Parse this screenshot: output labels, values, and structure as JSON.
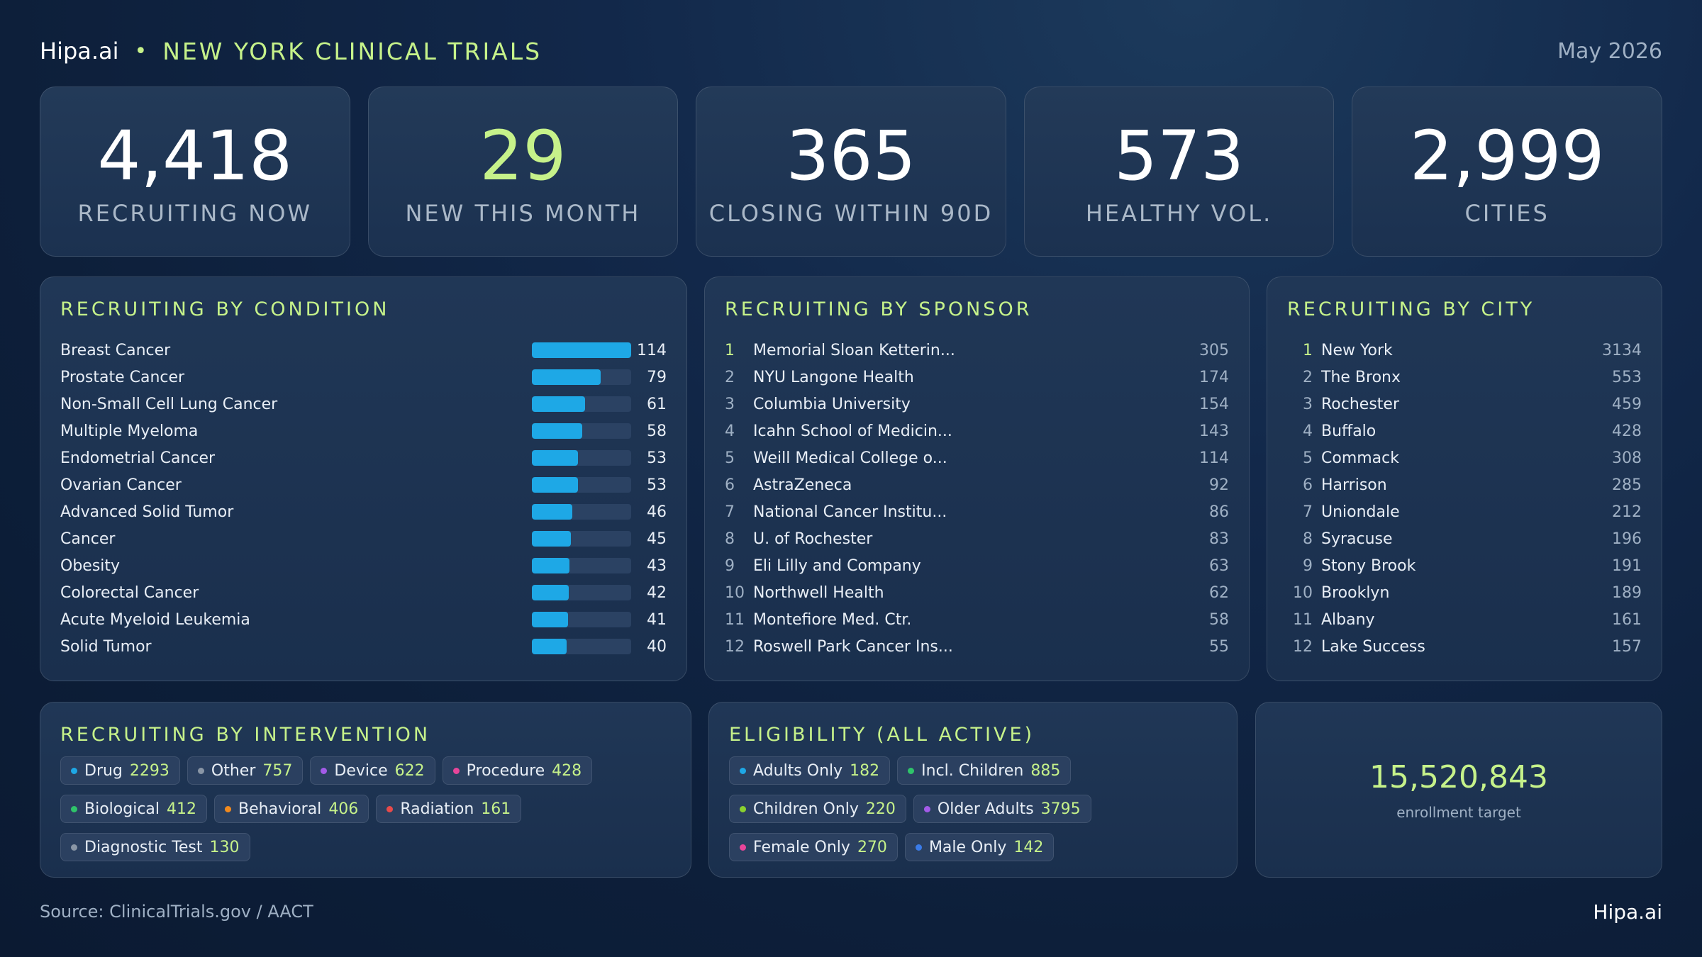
{
  "header": {
    "brand": "Hipa.ai",
    "separator": "•",
    "title": "NEW YORK CLINICAL TRIALS",
    "date": "May 2026"
  },
  "kpis": [
    {
      "value": "4,418",
      "label": "RECRUITING NOW"
    },
    {
      "value": "29",
      "label": "NEW THIS MONTH"
    },
    {
      "value": "365",
      "label": "CLOSING WITHIN 90D"
    },
    {
      "value": "573",
      "label": "HEALTHY VOL."
    },
    {
      "value": "2,999",
      "label": "CITIES"
    }
  ],
  "condition": {
    "title": "RECRUITING BY CONDITION",
    "max": 114,
    "items": [
      {
        "name": "Breast Cancer",
        "value": 114
      },
      {
        "name": "Prostate Cancer",
        "value": 79
      },
      {
        "name": "Non-Small Cell Lung Cancer",
        "value": 61
      },
      {
        "name": "Multiple Myeloma",
        "value": 58
      },
      {
        "name": "Endometrial Cancer",
        "value": 53
      },
      {
        "name": "Ovarian Cancer",
        "value": 53
      },
      {
        "name": "Advanced Solid Tumor",
        "value": 46
      },
      {
        "name": "Cancer",
        "value": 45
      },
      {
        "name": "Obesity",
        "value": 43
      },
      {
        "name": "Colorectal Cancer",
        "value": 42
      },
      {
        "name": "Acute Myeloid Leukemia",
        "value": 41
      },
      {
        "name": "Solid Tumor",
        "value": 40
      }
    ]
  },
  "sponsor": {
    "title": "RECRUITING BY SPONSOR",
    "items": [
      {
        "rank": "1",
        "name": "Memorial Sloan Ketterin...",
        "value": "305"
      },
      {
        "rank": "2",
        "name": "NYU Langone Health",
        "value": "174"
      },
      {
        "rank": "3",
        "name": "Columbia University",
        "value": "154"
      },
      {
        "rank": "4",
        "name": "Icahn School of Medicin...",
        "value": "143"
      },
      {
        "rank": "5",
        "name": "Weill Medical College o...",
        "value": "114"
      },
      {
        "rank": "6",
        "name": "AstraZeneca",
        "value": "92"
      },
      {
        "rank": "7",
        "name": "National Cancer Institu...",
        "value": "86"
      },
      {
        "rank": "8",
        "name": "U. of Rochester",
        "value": "83"
      },
      {
        "rank": "9",
        "name": "Eli Lilly and Company",
        "value": "63"
      },
      {
        "rank": "10",
        "name": "Northwell Health",
        "value": "62"
      },
      {
        "rank": "11",
        "name": "Montefiore Med. Ctr.",
        "value": "58"
      },
      {
        "rank": "12",
        "name": "Roswell Park Cancer Ins...",
        "value": "55"
      }
    ]
  },
  "city": {
    "title": "RECRUITING BY CITY",
    "items": [
      {
        "rank": "1",
        "name": "New York",
        "value": "3134"
      },
      {
        "rank": "2",
        "name": "The Bronx",
        "value": "553"
      },
      {
        "rank": "3",
        "name": "Rochester",
        "value": "459"
      },
      {
        "rank": "4",
        "name": "Buffalo",
        "value": "428"
      },
      {
        "rank": "5",
        "name": "Commack",
        "value": "308"
      },
      {
        "rank": "6",
        "name": "Harrison",
        "value": "285"
      },
      {
        "rank": "7",
        "name": "Uniondale",
        "value": "212"
      },
      {
        "rank": "8",
        "name": "Syracuse",
        "value": "196"
      },
      {
        "rank": "9",
        "name": "Stony Brook",
        "value": "191"
      },
      {
        "rank": "10",
        "name": "Brooklyn",
        "value": "189"
      },
      {
        "rank": "11",
        "name": "Albany",
        "value": "161"
      },
      {
        "rank": "12",
        "name": "Lake Success",
        "value": "157"
      }
    ]
  },
  "intervention": {
    "title": "RECRUITING BY INTERVENTION",
    "items": [
      {
        "label": "Drug",
        "value": "2293",
        "color": "#1ea8e6"
      },
      {
        "label": "Other",
        "value": "757",
        "color": "#8a96a6"
      },
      {
        "label": "Device",
        "value": "622",
        "color": "#a35be8"
      },
      {
        "label": "Procedure",
        "value": "428",
        "color": "#e8459a"
      },
      {
        "label": "Biological",
        "value": "412",
        "color": "#2fc46a"
      },
      {
        "label": "Behavioral",
        "value": "406",
        "color": "#f28a1e"
      },
      {
        "label": "Radiation",
        "value": "161",
        "color": "#e84a4a"
      },
      {
        "label": "Diagnostic Test",
        "value": "130",
        "color": "#8a96a6"
      }
    ]
  },
  "eligibility": {
    "title": "ELIGIBILITY (ALL ACTIVE)",
    "items": [
      {
        "label": "Adults Only",
        "value": "182",
        "color": "#1ea8e6"
      },
      {
        "label": "Incl. Children",
        "value": "885",
        "color": "#2fc46a"
      },
      {
        "label": "Children Only",
        "value": "220",
        "color": "#8ad12f"
      },
      {
        "label": "Older Adults",
        "value": "3795",
        "color": "#a35be8"
      },
      {
        "label": "Female Only",
        "value": "270",
        "color": "#e8459a"
      },
      {
        "label": "Male Only",
        "value": "142",
        "color": "#3a7be8"
      }
    ]
  },
  "enrollment": {
    "value": "15,520,843",
    "label": "enrollment target"
  },
  "footer": {
    "source": "Source: ClinicalTrials.gov / AACT",
    "brand": "Hipa.ai"
  }
}
